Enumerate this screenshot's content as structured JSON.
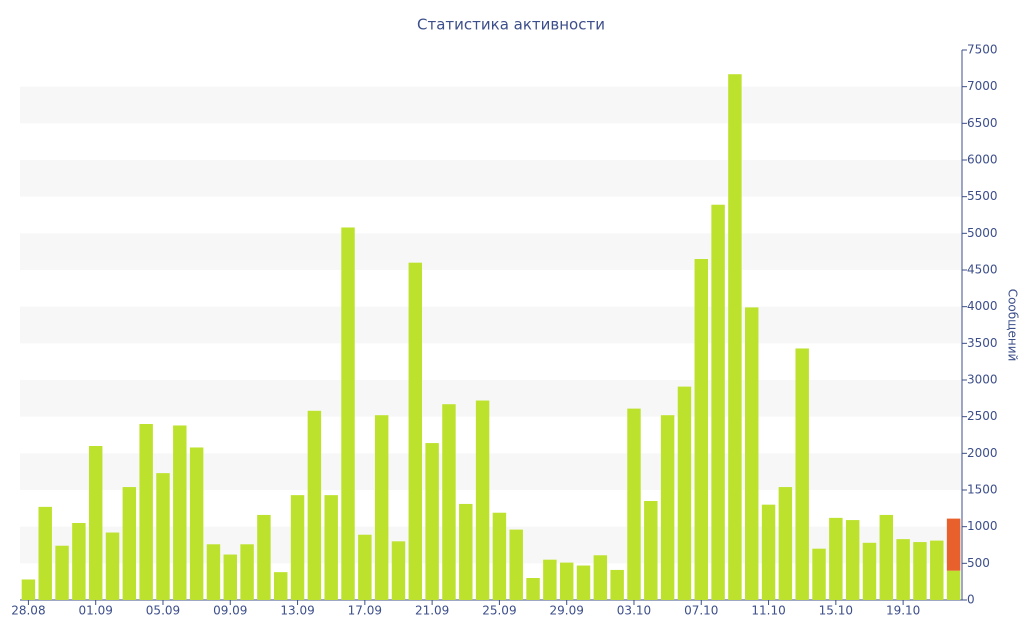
{
  "chart_data": {
    "type": "bar",
    "title": "Статистика активности",
    "y_label": "Сообщений",
    "categories": [
      "28.08",
      null,
      null,
      null,
      "01.09",
      null,
      null,
      null,
      "05.09",
      null,
      null,
      null,
      "09.09",
      null,
      null,
      null,
      "13.09",
      null,
      null,
      null,
      "17.09",
      null,
      null,
      null,
      "21.09",
      null,
      null,
      null,
      "25.09",
      null,
      null,
      null,
      "29.09",
      null,
      null,
      null,
      "03.10",
      null,
      null,
      null,
      "07.10",
      null,
      null,
      null,
      "11.10",
      null,
      null,
      null,
      "15.10",
      null,
      null,
      null,
      "19.10",
      null,
      null,
      null
    ],
    "series": [
      {
        "color": "#bde22e",
        "values": [
          280,
          1270,
          740,
          1050,
          2100,
          920,
          1540,
          2400,
          1730,
          2380,
          2080,
          760,
          620,
          760,
          1160,
          380,
          1430,
          2580,
          1430,
          5080,
          890,
          2520,
          800,
          4600,
          2140,
          2670,
          1310,
          2720,
          1190,
          960,
          300,
          550,
          510,
          470,
          610,
          410,
          2610,
          1350,
          2520,
          2910,
          4650,
          5390,
          7170,
          3990,
          1300,
          1540,
          3430,
          700,
          1120,
          1090,
          780,
          1160,
          830,
          790,
          810,
          400
        ]
      },
      {
        "color": "#e8612c",
        "values": [
          null,
          null,
          null,
          null,
          null,
          null,
          null,
          null,
          null,
          null,
          null,
          null,
          null,
          null,
          null,
          null,
          null,
          null,
          null,
          null,
          null,
          null,
          null,
          null,
          null,
          null,
          null,
          null,
          null,
          null,
          null,
          null,
          null,
          null,
          null,
          null,
          null,
          null,
          null,
          null,
          null,
          null,
          null,
          null,
          null,
          null,
          null,
          null,
          null,
          null,
          null,
          null,
          null,
          null,
          null,
          710
        ]
      }
    ],
    "stacked": true,
    "ylim": [
      0,
      7500
    ],
    "yticks": [
      0,
      500,
      1000,
      1500,
      2000,
      2500,
      3000,
      3500,
      4000,
      4500,
      5000,
      5500,
      6000,
      6500,
      7000,
      7500
    ],
    "grid": "bands",
    "band_color": "#f7f7f7",
    "y_axis_side": "right"
  }
}
